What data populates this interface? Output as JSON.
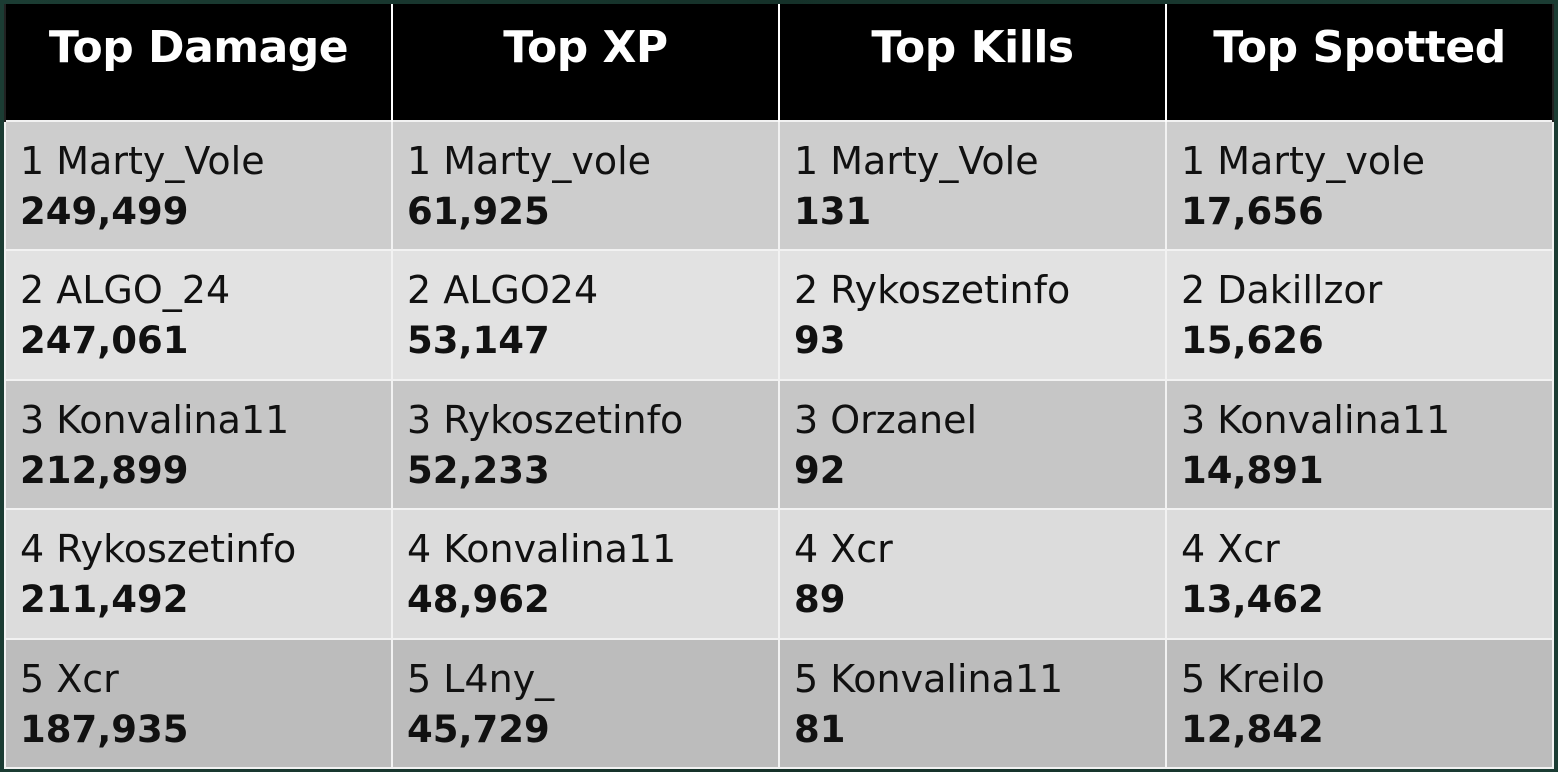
{
  "headers": [
    "Top Damage",
    "Top XP",
    "Top Kills",
    "Top Spotted"
  ],
  "rows": [
    [
      {
        "name": "1 Marty_Vole",
        "value": "249,499"
      },
      {
        "name": "1 Marty_vole",
        "value": "61,925"
      },
      {
        "name": "1 Marty_Vole",
        "value": "131"
      },
      {
        "name": "1 Marty_vole",
        "value": "17,656"
      }
    ],
    [
      {
        "name": "2 ALGO_24",
        "value": "247,061"
      },
      {
        "name": "2 ALGO24",
        "value": "53,147"
      },
      {
        "name": "2 Rykoszetinfo",
        "value": "93"
      },
      {
        "name": "2 Dakillzor",
        "value": "15,626"
      }
    ],
    [
      {
        "name": "3 Konvalina11",
        "value": "212,899"
      },
      {
        "name": "3 Rykoszetinfo",
        "value": "52,233"
      },
      {
        "name": "3 Orzanel",
        "value": "92"
      },
      {
        "name": "3 Konvalina11",
        "value": "14,891"
      }
    ],
    [
      {
        "name": "4 Rykoszetinfo",
        "value": "211,492"
      },
      {
        "name": "4 Konvalina11",
        "value": "48,962"
      },
      {
        "name": "4 Xcr",
        "value": "89"
      },
      {
        "name": "4 Xcr",
        "value": "13,462"
      }
    ],
    [
      {
        "name": "5 Xcr",
        "value": "187,935"
      },
      {
        "name": "5 L4ny_",
        "value": "45,729"
      },
      {
        "name": "5 Konvalina11",
        "value": "81"
      },
      {
        "name": "5 Kreilo",
        "value": "12,842"
      }
    ]
  ]
}
